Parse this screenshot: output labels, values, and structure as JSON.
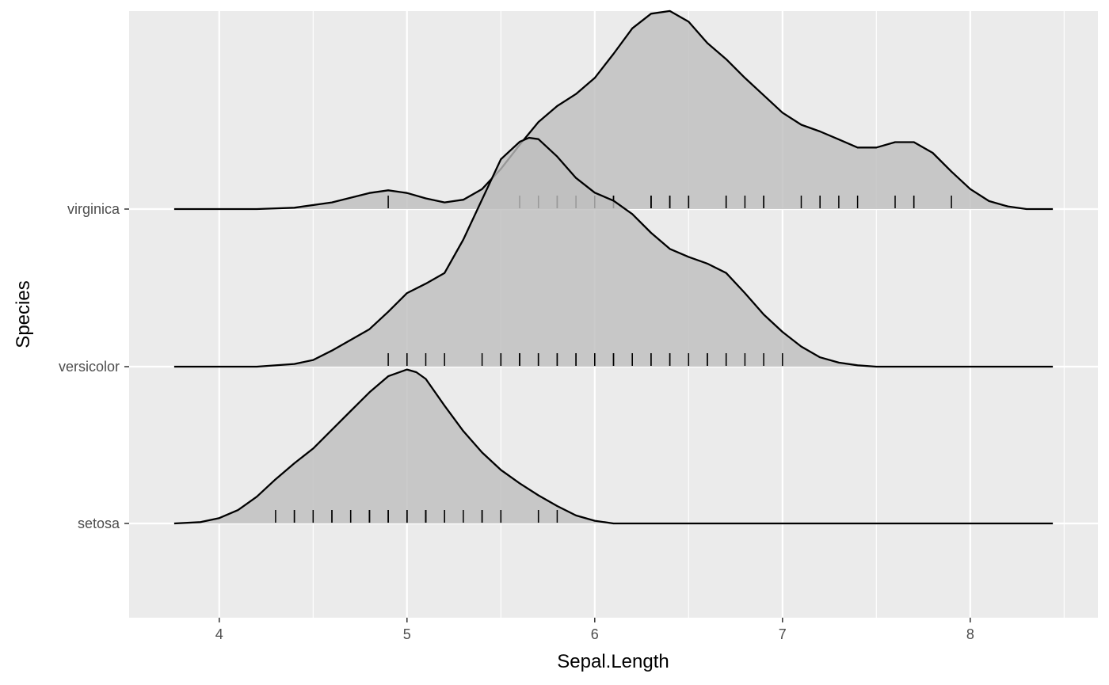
{
  "chart_data": {
    "type": "ridgeline",
    "xlabel": "Sepal.Length",
    "ylabel": "Species",
    "xlim": [
      3.52,
      8.68
    ],
    "x_ticks": [
      4,
      5,
      6,
      7,
      8
    ],
    "x_minor_ticks": [
      4.5,
      5.5,
      6.5,
      7.5,
      8.5
    ],
    "x_tick_labels": [
      "4",
      "5",
      "6",
      "7",
      "8"
    ],
    "grid": true,
    "background_color": "#ebebeb",
    "fill_color": "#bebebe",
    "line_color": "#000000",
    "density_x_range": [
      3.76,
      8.44
    ],
    "series": [
      {
        "name": "setosa",
        "density": [
          [
            3.76,
            0.0
          ],
          [
            3.9,
            0.01
          ],
          [
            4.0,
            0.04
          ],
          [
            4.1,
            0.1
          ],
          [
            4.2,
            0.2
          ],
          [
            4.3,
            0.33
          ],
          [
            4.4,
            0.45
          ],
          [
            4.5,
            0.56
          ],
          [
            4.6,
            0.7
          ],
          [
            4.7,
            0.84
          ],
          [
            4.8,
            0.98
          ],
          [
            4.9,
            1.1
          ],
          [
            5.0,
            1.15
          ],
          [
            5.05,
            1.13
          ],
          [
            5.1,
            1.08
          ],
          [
            5.2,
            0.88
          ],
          [
            5.3,
            0.69
          ],
          [
            5.4,
            0.53
          ],
          [
            5.5,
            0.4
          ],
          [
            5.6,
            0.3
          ],
          [
            5.7,
            0.21
          ],
          [
            5.8,
            0.13
          ],
          [
            5.9,
            0.06
          ],
          [
            6.0,
            0.02
          ],
          [
            6.1,
            0.0
          ],
          [
            8.44,
            0.0
          ]
        ],
        "rug": [
          4.3,
          4.4,
          4.4,
          4.5,
          4.6,
          4.6,
          4.7,
          4.7,
          4.8,
          4.8,
          4.8,
          4.8,
          4.9,
          4.9,
          4.9,
          5.0,
          5.0,
          5.0,
          5.0,
          5.0,
          5.0,
          5.1,
          5.1,
          5.1,
          5.1,
          5.1,
          5.2,
          5.2,
          5.3,
          5.4,
          5.4,
          5.4,
          5.5,
          5.5,
          5.7,
          5.7,
          5.8
        ]
      },
      {
        "name": "versicolor",
        "density": [
          [
            3.76,
            0.0
          ],
          [
            4.2,
            0.0
          ],
          [
            4.4,
            0.02
          ],
          [
            4.5,
            0.05
          ],
          [
            4.6,
            0.12
          ],
          [
            4.7,
            0.2
          ],
          [
            4.8,
            0.28
          ],
          [
            4.9,
            0.41
          ],
          [
            5.0,
            0.55
          ],
          [
            5.1,
            0.62
          ],
          [
            5.2,
            0.7
          ],
          [
            5.3,
            0.95
          ],
          [
            5.4,
            1.25
          ],
          [
            5.5,
            1.55
          ],
          [
            5.6,
            1.68
          ],
          [
            5.65,
            1.71
          ],
          [
            5.7,
            1.7
          ],
          [
            5.8,
            1.57
          ],
          [
            5.9,
            1.41
          ],
          [
            6.0,
            1.3
          ],
          [
            6.1,
            1.24
          ],
          [
            6.2,
            1.14
          ],
          [
            6.3,
            1.0
          ],
          [
            6.4,
            0.88
          ],
          [
            6.5,
            0.82
          ],
          [
            6.6,
            0.77
          ],
          [
            6.7,
            0.7
          ],
          [
            6.8,
            0.55
          ],
          [
            6.9,
            0.39
          ],
          [
            7.0,
            0.26
          ],
          [
            7.1,
            0.15
          ],
          [
            7.2,
            0.07
          ],
          [
            7.3,
            0.03
          ],
          [
            7.4,
            0.01
          ],
          [
            7.5,
            0.0
          ],
          [
            8.44,
            0.0
          ]
        ],
        "rug": [
          4.9,
          5.0,
          5.0,
          5.1,
          5.2,
          5.4,
          5.5,
          5.5,
          5.5,
          5.6,
          5.6,
          5.6,
          5.7,
          5.7,
          5.7,
          5.7,
          5.8,
          5.8,
          5.9,
          5.9,
          6.0,
          6.0,
          6.1,
          6.1,
          6.2,
          6.2,
          6.3,
          6.3,
          6.4,
          6.4,
          6.5,
          6.6,
          6.6,
          6.7,
          6.7,
          6.8,
          6.9,
          7.0
        ]
      },
      {
        "name": "virginica",
        "density": [
          [
            3.76,
            0.0
          ],
          [
            4.2,
            0.0
          ],
          [
            4.4,
            0.01
          ],
          [
            4.6,
            0.05
          ],
          [
            4.8,
            0.12
          ],
          [
            4.9,
            0.14
          ],
          [
            5.0,
            0.12
          ],
          [
            5.1,
            0.08
          ],
          [
            5.2,
            0.05
          ],
          [
            5.3,
            0.07
          ],
          [
            5.4,
            0.15
          ],
          [
            5.5,
            0.3
          ],
          [
            5.6,
            0.48
          ],
          [
            5.7,
            0.65
          ],
          [
            5.8,
            0.77
          ],
          [
            5.9,
            0.86
          ],
          [
            6.0,
            0.98
          ],
          [
            6.1,
            1.16
          ],
          [
            6.2,
            1.35
          ],
          [
            6.3,
            1.46
          ],
          [
            6.4,
            1.48
          ],
          [
            6.5,
            1.4
          ],
          [
            6.6,
            1.24
          ],
          [
            6.7,
            1.12
          ],
          [
            6.8,
            0.98
          ],
          [
            6.9,
            0.85
          ],
          [
            7.0,
            0.72
          ],
          [
            7.1,
            0.63
          ],
          [
            7.2,
            0.58
          ],
          [
            7.3,
            0.52
          ],
          [
            7.4,
            0.46
          ],
          [
            7.5,
            0.46
          ],
          [
            7.6,
            0.5
          ],
          [
            7.7,
            0.5
          ],
          [
            7.8,
            0.42
          ],
          [
            7.9,
            0.28
          ],
          [
            8.0,
            0.15
          ],
          [
            8.1,
            0.06
          ],
          [
            8.2,
            0.02
          ],
          [
            8.3,
            0.0
          ],
          [
            8.44,
            0.0
          ]
        ],
        "rug": [
          4.9,
          5.6,
          5.7,
          5.8,
          5.8,
          5.9,
          6.0,
          6.1,
          6.1,
          6.3,
          6.3,
          6.3,
          6.3,
          6.4,
          6.4,
          6.4,
          6.5,
          6.5,
          6.5,
          6.7,
          6.7,
          6.7,
          6.8,
          6.9,
          6.9,
          7.1,
          7.2,
          7.2,
          7.3,
          7.4,
          7.6,
          7.7,
          7.7,
          7.7,
          7.9
        ]
      }
    ]
  }
}
